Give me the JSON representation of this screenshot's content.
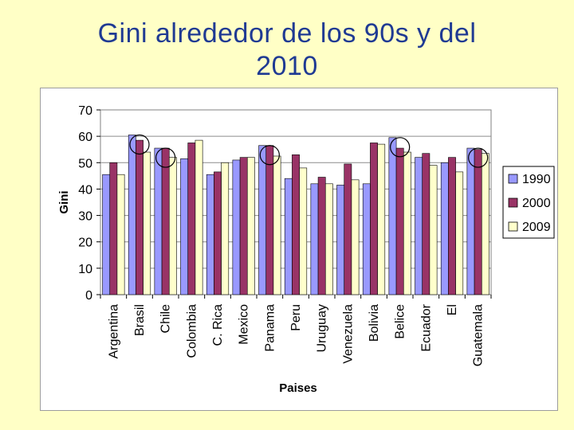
{
  "slide": {
    "title_line1": "Gini alrededor de los 90s y del",
    "title_line2": "2010"
  },
  "colors": {
    "background": "#FFFFC6",
    "title": "#1F3A93",
    "series_1990": "#9999FF",
    "series_2000": "#993366",
    "series_2009": "#FFFFCC"
  },
  "chart_data": {
    "type": "bar",
    "title": "",
    "xlabel": "Paises",
    "ylabel": "Gini",
    "ylim": [
      0,
      70
    ],
    "yticks": [
      0,
      10,
      20,
      30,
      40,
      50,
      60,
      70
    ],
    "grid": true,
    "legend_position": "right",
    "categories": [
      "Argentina",
      "Brasil",
      "Chile",
      "Colombia",
      "C. Rica",
      "Mexico",
      "Panama",
      "Peru",
      "Uruguay",
      "Venezuela",
      "Bolivia",
      "Belice",
      "Ecuador",
      "El",
      "Guatemala"
    ],
    "series": [
      {
        "name": "1990",
        "color": "#9999FF",
        "values": [
          45.5,
          60.5,
          55.5,
          51.5,
          45.5,
          51.0,
          56.5,
          44.0,
          42.0,
          41.5,
          42.0,
          59.5,
          52.0,
          50.0,
          55.5
        ]
      },
      {
        "name": "2000",
        "color": "#993366",
        "values": [
          50.0,
          58.5,
          55.5,
          57.5,
          46.5,
          52.0,
          56.5,
          53.0,
          44.5,
          49.5,
          57.5,
          55.5,
          53.5,
          52.0,
          55.0
        ]
      },
      {
        "name": "2009",
        "color": "#FFFFCC",
        "values": [
          45.5,
          54.0,
          52.0,
          58.5,
          50.0,
          52.0,
          52.5,
          48.0,
          42.0,
          43.5,
          57.0,
          54.0,
          49.0,
          46.5,
          53.5
        ]
      }
    ],
    "highlighted_categories": [
      "Brasil",
      "Chile",
      "Panama",
      "Belice",
      "Guatemala"
    ]
  }
}
